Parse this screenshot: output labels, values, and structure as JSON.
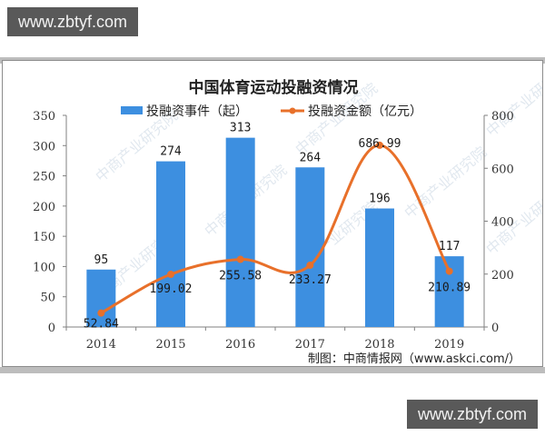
{
  "watermarks": {
    "top": "www.zbtyf.com",
    "bottom": "www.zbtyf.com"
  },
  "colors": {
    "bars": "#3d8fe0",
    "line": "#e8702a",
    "axis": "#808080",
    "band": "#bdbdbd",
    "watermark_bg": "#595959"
  },
  "chart": {
    "title": "中国体育运动投融资情况",
    "legend": {
      "bars": "投融资事件（起）",
      "line": "投融资金额（亿元）"
    },
    "source": "制图：中商情报网（www.askci.com/）",
    "background_watermark": "中商产业研究院"
  },
  "chart_data": {
    "type": "bar",
    "title": "中国体育运动投融资情况",
    "categories": [
      "2014",
      "2015",
      "2016",
      "2017",
      "2018",
      "2019"
    ],
    "series": [
      {
        "name": "投融资事件（起）",
        "type": "bar",
        "axis": "left",
        "values": [
          95,
          274,
          313,
          264,
          196,
          117
        ],
        "labels": [
          "95",
          "274",
          "313",
          "264",
          "196",
          "117"
        ]
      },
      {
        "name": "投融资金额（亿元）",
        "type": "line",
        "axis": "right",
        "smooth": true,
        "values": [
          52.84,
          199.02,
          255.58,
          233.27,
          686.99,
          210.89
        ],
        "labels": [
          "52.84",
          "199.02",
          "255.58",
          "233.27",
          "686.99",
          "210.89"
        ]
      }
    ],
    "xlabel": "",
    "ylabel": "",
    "ylim": [
      0,
      350
    ],
    "y_ticks": [
      "0",
      "50",
      "100",
      "150",
      "200",
      "250",
      "300",
      "350"
    ],
    "y2lim": [
      0,
      800
    ],
    "y2_ticks": [
      "0",
      "200",
      "400",
      "600",
      "800"
    ],
    "legend_position": "top",
    "grid": false,
    "source": "制图：中商情报网（www.askci.com/）"
  }
}
